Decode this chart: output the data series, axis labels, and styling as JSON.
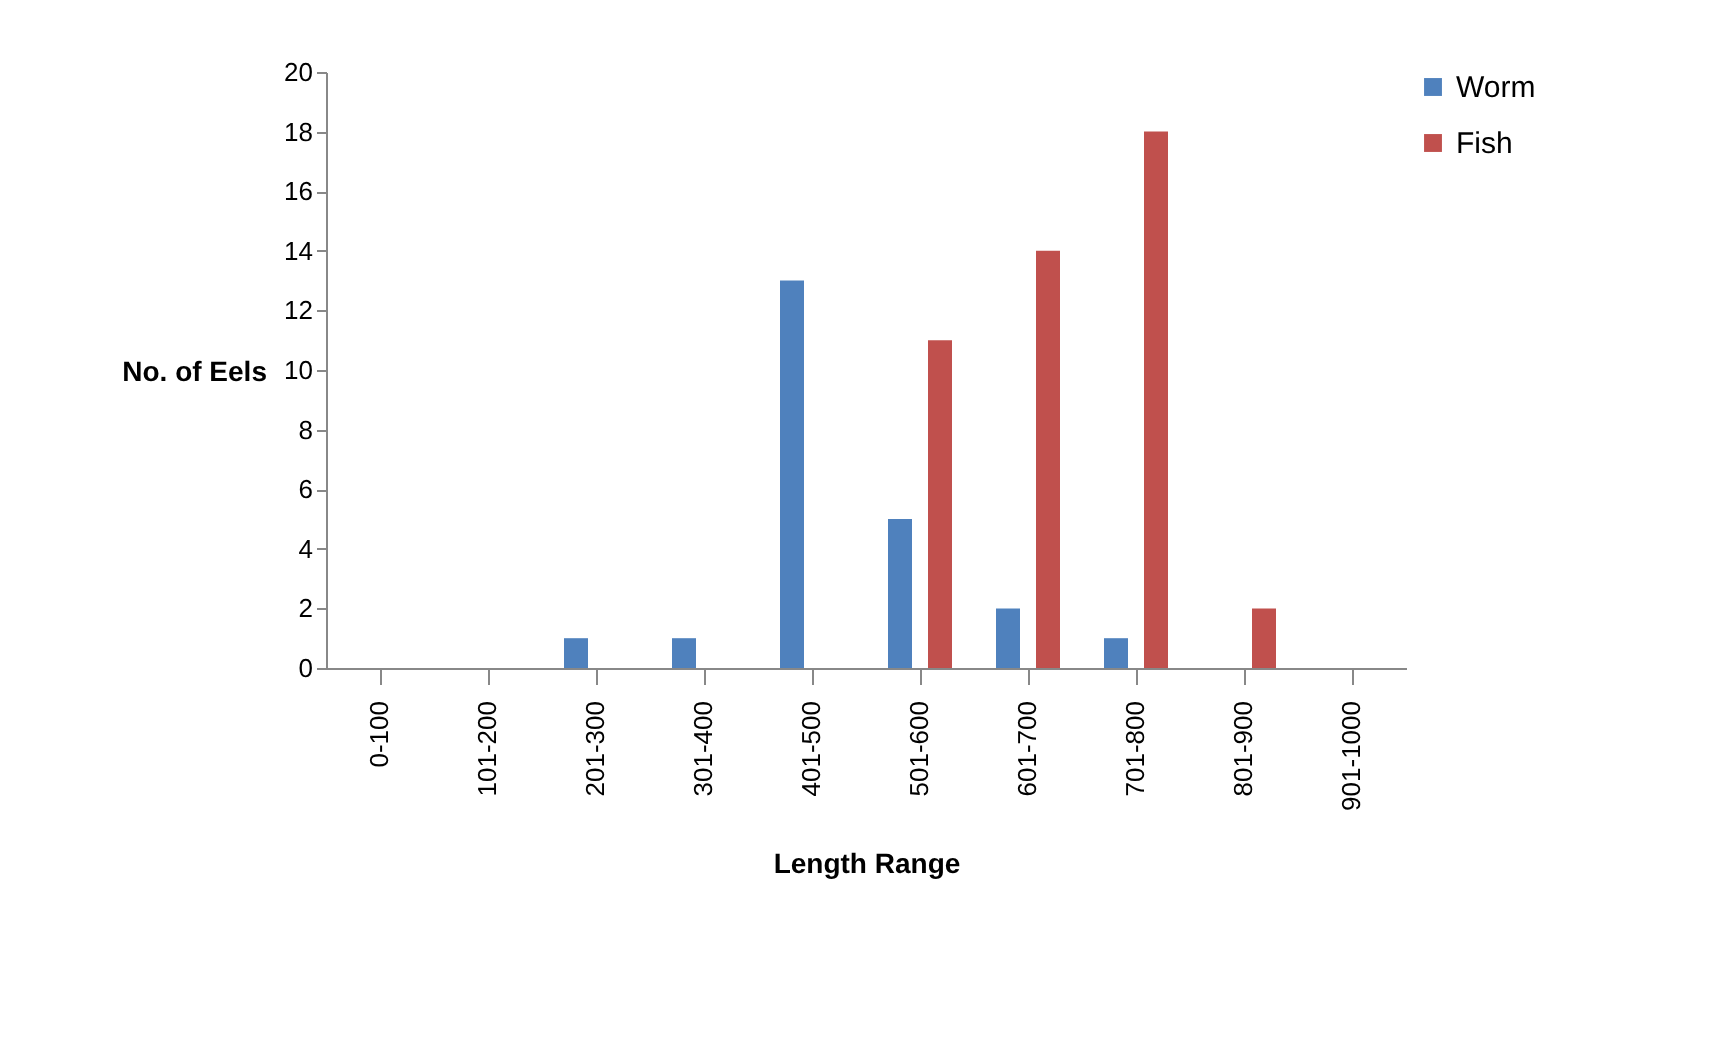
{
  "chart_data": {
    "type": "bar",
    "xlabel": "Length Range",
    "ylabel": "No. of Eels",
    "categories": [
      "0-100",
      "101-200",
      "201-300",
      "301-400",
      "401-500",
      "501-600",
      "601-700",
      "701-800",
      "801-900",
      "901-1000"
    ],
    "series": [
      {
        "name": "Worm",
        "color": "#4f81bd",
        "values": [
          0,
          0,
          1,
          1,
          13,
          5,
          2,
          1,
          0,
          0
        ]
      },
      {
        "name": "Fish",
        "color": "#c0504d",
        "values": [
          0,
          0,
          0,
          0,
          0,
          11,
          14,
          18,
          2,
          0
        ]
      }
    ],
    "ylim": [
      0,
      20
    ],
    "yticks": [
      0,
      2,
      4,
      6,
      8,
      10,
      12,
      14,
      16,
      18,
      20
    ],
    "grid": false,
    "legend": "right"
  }
}
